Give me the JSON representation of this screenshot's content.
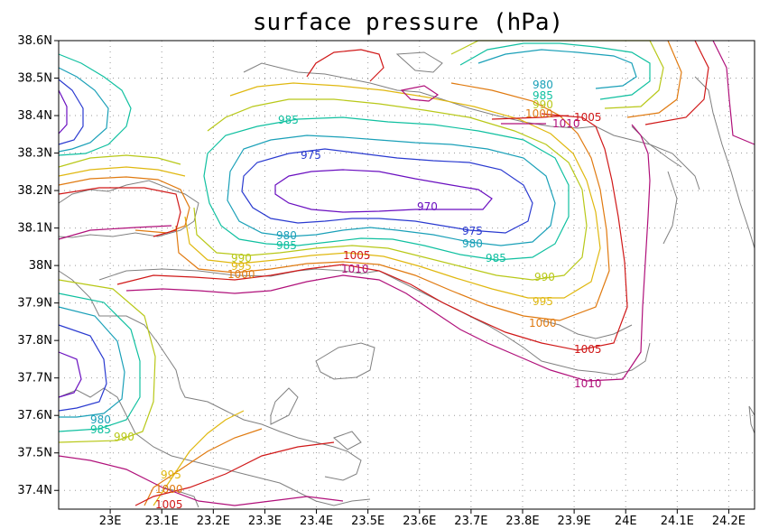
{
  "title": "surface pressure (hPa)",
  "chart_data": {
    "type": "contour",
    "title": "surface pressure (hPa)",
    "x_range": [
      22.9,
      24.25
    ],
    "y_range": [
      37.35,
      38.6
    ],
    "x_ticks": [
      "23E",
      "23.1E",
      "23.2E",
      "23.3E",
      "23.4E",
      "23.5E",
      "23.6E",
      "23.7E",
      "23.8E",
      "23.9E",
      "24E",
      "24.1E",
      "24.2E"
    ],
    "y_ticks": [
      "38.6N",
      "38.5N",
      "38.4N",
      "38.3N",
      "38.2N",
      "38.1N",
      "38N",
      "37.9N",
      "37.8N",
      "37.7N",
      "37.6N",
      "37.5N",
      "37.4N"
    ],
    "levels": [
      970,
      975,
      980,
      985,
      990,
      995,
      1000,
      1005,
      1010
    ],
    "level_colors": {
      "970": "#6a0fc0",
      "975": "#2a3ad0",
      "980": "#1aa0b8",
      "985": "#10c0a0",
      "990": "#b8c818",
      "995": "#e0b810",
      "1000": "#e07a10",
      "1005": "#d01818",
      "1010": "#b0107a"
    },
    "grid": "dotted",
    "labels": [
      {
        "text": "980",
        "level": 980
      },
      {
        "text": "985",
        "level": 985
      },
      {
        "text": "990",
        "level": 990
      },
      {
        "text": "1000",
        "level": 1000
      },
      {
        "text": "1005",
        "level": 1005
      },
      {
        "text": "1010",
        "level": 1010
      },
      {
        "text": "985",
        "level": 985
      },
      {
        "text": "975",
        "level": 975
      },
      {
        "text": "970",
        "level": 970
      },
      {
        "text": "975",
        "level": 975
      },
      {
        "text": "980",
        "level": 980
      },
      {
        "text": "985",
        "level": 985
      },
      {
        "text": "980",
        "level": 980
      },
      {
        "text": "985",
        "level": 985
      },
      {
        "text": "990",
        "level": 990
      },
      {
        "text": "995",
        "level": 995
      },
      {
        "text": "1000",
        "level": 1000
      },
      {
        "text": "1005",
        "level": 1005
      },
      {
        "text": "1010",
        "level": 1010
      },
      {
        "text": "990",
        "level": 990
      },
      {
        "text": "995",
        "level": 995
      },
      {
        "text": "1000",
        "level": 1000
      },
      {
        "text": "1005",
        "level": 1005
      },
      {
        "text": "1010",
        "level": 1010
      },
      {
        "text": "980",
        "level": 980
      },
      {
        "text": "985",
        "level": 985
      },
      {
        "text": "990",
        "level": 990
      },
      {
        "text": "995",
        "level": 995
      },
      {
        "text": "1000",
        "level": 1000
      },
      {
        "text": "1005",
        "level": 1005
      }
    ]
  }
}
